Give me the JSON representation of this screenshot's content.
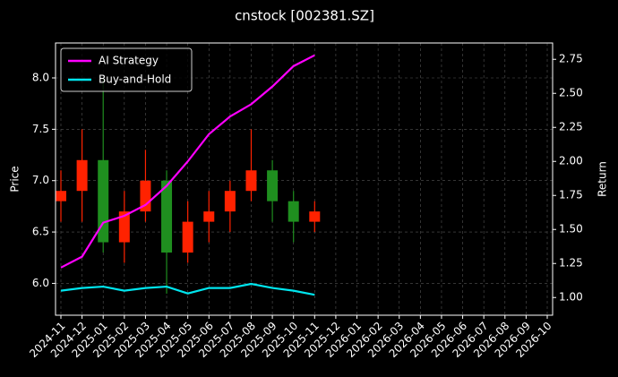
{
  "chart_data": {
    "type": "candlestick",
    "title": "cnstock [002381.SZ]",
    "ylabel": "Price",
    "y2label": "Return",
    "x": [
      "2024-11",
      "2024-12",
      "2025-01",
      "2025-02",
      "2025-03",
      "2025-04",
      "2025-05",
      "2025-06",
      "2025-07",
      "2025-08",
      "2025-09",
      "2025-10",
      "2025-11"
    ],
    "open": [
      6.8,
      6.9,
      7.2,
      6.4,
      6.7,
      7.0,
      6.3,
      6.6,
      6.7,
      6.9,
      7.1,
      6.8,
      6.6
    ],
    "high": [
      7.1,
      7.5,
      8.0,
      6.9,
      7.3,
      7.1,
      6.8,
      6.9,
      7.0,
      7.5,
      7.2,
      6.9,
      6.8
    ],
    "low": [
      6.6,
      6.6,
      6.3,
      6.2,
      6.6,
      5.9,
      6.2,
      6.4,
      6.5,
      6.8,
      6.6,
      6.4,
      6.5
    ],
    "close": [
      6.9,
      7.2,
      6.4,
      6.7,
      7.0,
      6.3,
      6.6,
      6.7,
      6.9,
      7.1,
      6.8,
      6.6,
      6.7
    ],
    "up_color": "#ff2200",
    "down_color": "#1f8f1f",
    "series": [
      {
        "name": "AI Strategy",
        "color": "#ff00ff",
        "axis": "y2",
        "values": [
          1.22,
          1.3,
          1.55,
          1.6,
          1.68,
          1.82,
          2.0,
          2.2,
          2.33,
          2.42,
          2.55,
          2.7,
          2.78
        ]
      },
      {
        "name": "Buy-and-Hold",
        "color": "#00e5ee",
        "axis": "y2",
        "values": [
          1.05,
          1.07,
          1.08,
          1.05,
          1.07,
          1.08,
          1.03,
          1.07,
          1.07,
          1.1,
          1.07,
          1.05,
          1.02
        ]
      }
    ],
    "xlim": [
      "2024-11",
      "2026-10"
    ],
    "xticks": [
      "2024-11",
      "2024-12",
      "2025-01",
      "2025-02",
      "2025-03",
      "2025-04",
      "2025-05",
      "2025-06",
      "2025-07",
      "2025-08",
      "2025-09",
      "2025-10",
      "2025-11",
      "2025-12",
      "2026-01",
      "2026-02",
      "2026-03",
      "2026-04",
      "2026-05",
      "2026-06",
      "2026-07",
      "2026-08",
      "2026-09",
      "2026-10"
    ],
    "ylim": [
      5.69,
      8.34
    ],
    "yticks": [
      {
        "value": 6,
        "label": "6.0"
      },
      6.5,
      {
        "value": 7,
        "label": "7.0"
      },
      7.5,
      {
        "value": 8,
        "label": "8.0"
      }
    ],
    "y2lim": [
      0.87,
      2.87
    ],
    "y2ticks": [
      {
        "value": 1,
        "label": "1.00"
      },
      1.25,
      {
        "value": 1.5,
        "label": "1.50"
      },
      1.75,
      {
        "value": 2,
        "label": "2.00"
      },
      2.25,
      {
        "value": 2.5,
        "label": "2.50"
      },
      2.75
    ],
    "grid": true,
    "legend": "upper left"
  }
}
